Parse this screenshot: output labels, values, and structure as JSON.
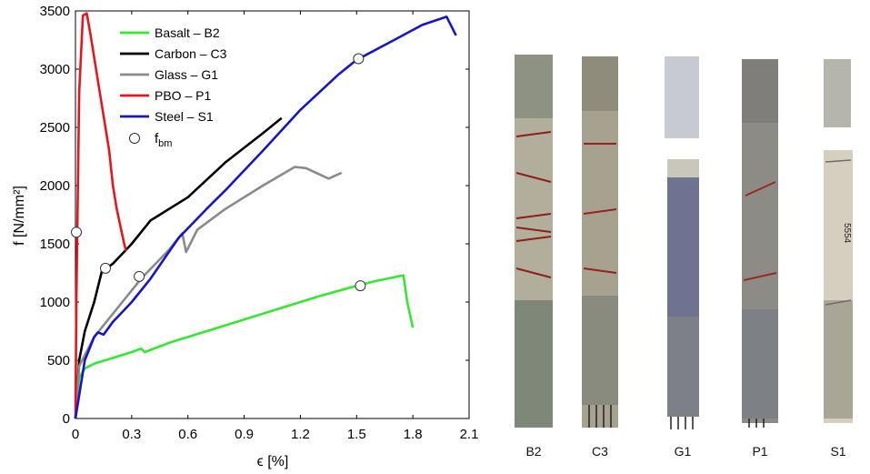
{
  "chart_data": {
    "type": "line",
    "title": "",
    "xlabel": "ϵ [%]",
    "ylabel": "f [N/mm²]",
    "xlim": [
      0,
      2.1
    ],
    "ylim": [
      0,
      3500
    ],
    "xticks": [
      "0",
      "0.3",
      "0.6",
      "0.9",
      "1.2",
      "1.5",
      "1.8",
      "2.1"
    ],
    "yticks": [
      "0",
      "500",
      "1000",
      "1500",
      "2000",
      "2500",
      "3000",
      "3500"
    ],
    "grid": false,
    "legend_position": "top-left",
    "series": [
      {
        "name": "Basalt – B2",
        "color": "#33e82e",
        "x": [
          0,
          0.02,
          0.05,
          0.1,
          0.2,
          0.3,
          0.35,
          0.37,
          0.5,
          0.8,
          1.1,
          1.3,
          1.5,
          1.6,
          1.75,
          1.77,
          1.8
        ],
        "y": [
          0,
          350,
          430,
          470,
          520,
          570,
          600,
          570,
          650,
          800,
          950,
          1050,
          1140,
          1180,
          1230,
          1000,
          780
        ]
      },
      {
        "name": "Carbon – C3",
        "color": "#000000",
        "x": [
          0,
          0.02,
          0.05,
          0.1,
          0.14,
          0.2,
          0.3,
          0.4,
          0.6,
          0.8,
          1.0,
          1.1
        ],
        "y": [
          0,
          500,
          750,
          1000,
          1260,
          1330,
          1500,
          1700,
          1900,
          2200,
          2450,
          2580
        ]
      },
      {
        "name": "Glass – G1",
        "color": "#8a8a8a",
        "x": [
          0,
          0.02,
          0.1,
          0.2,
          0.35,
          0.5,
          0.57,
          0.59,
          0.65,
          0.8,
          1.0,
          1.17,
          1.23,
          1.35,
          1.42
        ],
        "y": [
          0,
          450,
          700,
          900,
          1200,
          1450,
          1590,
          1430,
          1620,
          1800,
          2000,
          2160,
          2150,
          2060,
          2110
        ]
      },
      {
        "name": "PBO – P1",
        "color": "#e8161c",
        "x": [
          0,
          0.005,
          0.02,
          0.04,
          0.06,
          0.08,
          0.12,
          0.15,
          0.18,
          0.2,
          0.22,
          0.24,
          0.26,
          0.27
        ],
        "y": [
          0,
          1000,
          2800,
          3460,
          3480,
          3300,
          2900,
          2600,
          2300,
          2000,
          1800,
          1650,
          1500,
          1440
        ]
      },
      {
        "name": "Steel – S1",
        "color": "#1616c8",
        "x": [
          0,
          0.05,
          0.1,
          0.12,
          0.15,
          0.2,
          0.3,
          0.4,
          0.55,
          0.7,
          0.8,
          1.0,
          1.2,
          1.4,
          1.5,
          1.7,
          1.85,
          1.98,
          2.03
        ],
        "y": [
          0,
          500,
          700,
          740,
          720,
          830,
          1000,
          1200,
          1550,
          1800,
          1960,
          2300,
          2650,
          2950,
          3080,
          3250,
          3380,
          3450,
          3290
        ]
      }
    ],
    "markers": {
      "name": "f",
      "name_subscript": "bm",
      "x": [
        0.005,
        0.16,
        0.34,
        1.51,
        1.52
      ],
      "y": [
        1600,
        1290,
        1220,
        3090,
        1140
      ]
    }
  },
  "specimens": [
    {
      "label": "B2",
      "fill": "#a8a593"
    },
    {
      "label": "C3",
      "fill": "#a39f8c"
    },
    {
      "label": "G1",
      "fill": "#9799a6"
    },
    {
      "label": "P1",
      "fill": "#8c8a84"
    },
    {
      "label": "S1",
      "fill": "#c9c4b2"
    }
  ],
  "specimen_annotation": "5554"
}
